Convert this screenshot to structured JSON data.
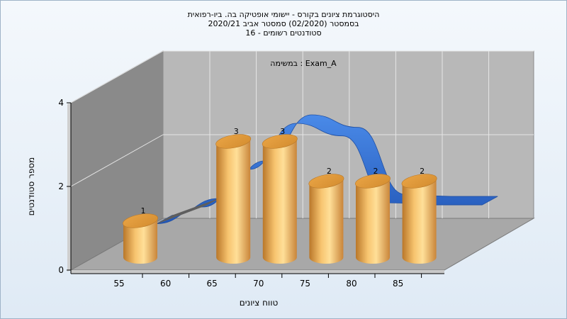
{
  "chart_data": {
    "type": "bar",
    "title_lines": [
      "היסטוגרמת ציונים בקורס - יישומי אופטיקה בה. ביו-רפואית",
      "בסמסטר  (02/2020)  סמסטר אביב 2020/21",
      "סטודנטים רשומים - 16"
    ],
    "annotation": "במשימה : Exam_A",
    "xlabel": "טווח ציונים",
    "ylabel": "מספר סטודנטים",
    "x_ticks": [
      "55",
      "60",
      "65",
      "70",
      "75",
      "80",
      "85"
    ],
    "y_ticks": [
      "0",
      "2",
      "4"
    ],
    "ylim": [
      0,
      4
    ],
    "series": [
      {
        "bars": [
          {
            "x": 55,
            "value": 1
          },
          {
            "x": 65,
            "value": 3
          },
          {
            "x": 70,
            "value": 3
          },
          {
            "x": 75,
            "value": 2
          },
          {
            "x": 80,
            "value": 2
          },
          {
            "x": 85,
            "value": 2
          }
        ]
      }
    ],
    "curve": {
      "points": [
        [
          55,
          0.6
        ],
        [
          60,
          1.0
        ],
        [
          65,
          1.9
        ],
        [
          70,
          3.0
        ],
        [
          75,
          2.7
        ],
        [
          80,
          1.1
        ],
        [
          85,
          1.05
        ],
        [
          90,
          1.05
        ]
      ]
    },
    "grid": true,
    "colors": {
      "bar": "#f0b04a",
      "curve": "#2f6fcf",
      "back_wall": "#b7b7b7",
      "side_wall": "#8c8c8c",
      "floor": "#a9a9a9"
    }
  }
}
